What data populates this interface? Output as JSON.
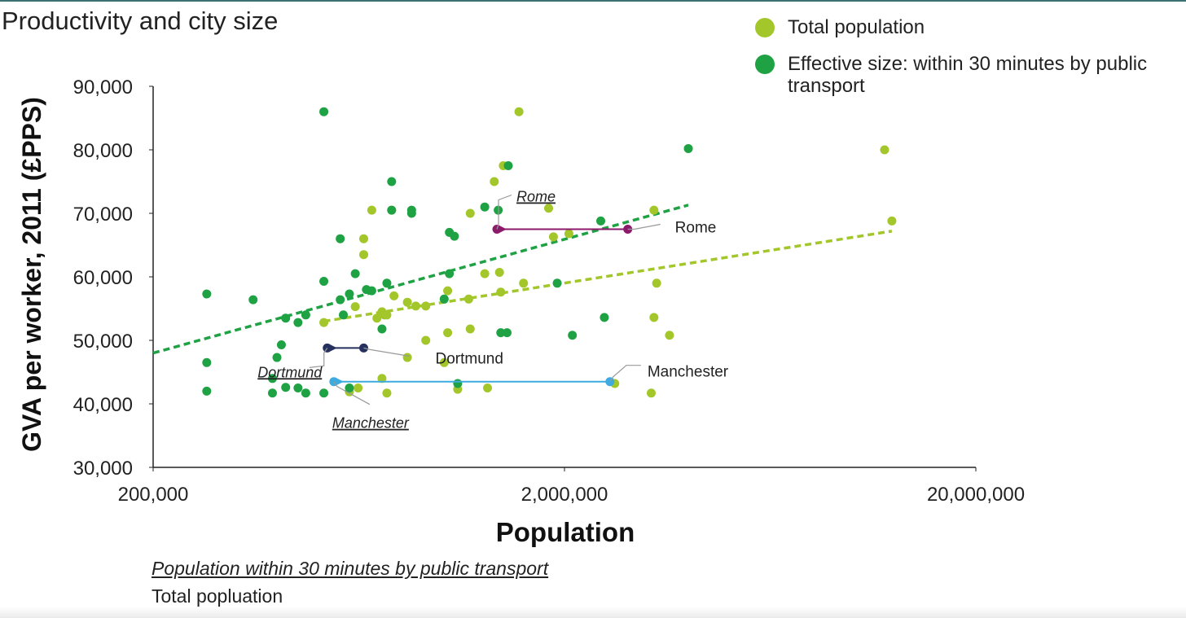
{
  "chart_data": {
    "type": "scatter",
    "title": "Productivity and city size",
    "xlabel": "Population",
    "ylabel": "GVA per worker, 2011 (£PPS)",
    "x_scale": "log",
    "xlim": [
      200000,
      20000000
    ],
    "ylim": [
      30000,
      90000
    ],
    "x_ticks": [
      200000,
      2000000,
      20000000
    ],
    "x_tick_labels": [
      "200,000",
      "2,000,000",
      "20,000,000"
    ],
    "y_ticks": [
      30000,
      40000,
      50000,
      60000,
      70000,
      80000,
      90000
    ],
    "y_tick_labels": [
      "30,000",
      "40,000",
      "50,000",
      "60,000",
      "70,000",
      "80,000",
      "90,000"
    ],
    "grid": false,
    "legend_position": "top-right",
    "series": [
      {
        "name": "Total population",
        "color": "#a3c72b",
        "points": [
          [
            1550000,
            86000
          ],
          [
            1420000,
            77500
          ],
          [
            1350000,
            75000
          ],
          [
            12000000,
            80000
          ],
          [
            12500000,
            68800
          ],
          [
            1830000,
            70800
          ],
          [
            1180000,
            70000
          ],
          [
            1880000,
            66300
          ],
          [
            2050000,
            66800
          ],
          [
            3300000,
            70500
          ],
          [
            3350000,
            59000
          ],
          [
            3300000,
            53600
          ],
          [
            3600000,
            50800
          ],
          [
            3250000,
            41700
          ],
          [
            2650000,
            43200
          ],
          [
            680000,
            70500
          ],
          [
            650000,
            66000
          ],
          [
            650000,
            63500
          ],
          [
            760000,
            70500
          ],
          [
            1280000,
            60500
          ],
          [
            1390000,
            60700
          ],
          [
            1400000,
            57600
          ],
          [
            1590000,
            59000
          ],
          [
            1040000,
            57800
          ],
          [
            1170000,
            56500
          ],
          [
            920000,
            55400
          ],
          [
            870000,
            55400
          ],
          [
            830000,
            56000
          ],
          [
            770000,
            57000
          ],
          [
            720000,
            54500
          ],
          [
            700000,
            53500
          ],
          [
            730000,
            54000
          ],
          [
            740000,
            54000
          ],
          [
            620000,
            55300
          ],
          [
            520000,
            52800
          ],
          [
            1040000,
            51200
          ],
          [
            1180000,
            51800
          ],
          [
            920000,
            50000
          ],
          [
            1020000,
            46500
          ],
          [
            830000,
            47300
          ],
          [
            720000,
            44000
          ],
          [
            600000,
            41900
          ],
          [
            740000,
            41700
          ],
          [
            1100000,
            42300
          ],
          [
            1300000,
            42500
          ],
          [
            630000,
            42500
          ]
        ]
      },
      {
        "name": "Effective size: within 30 minutes by public transport",
        "color": "#1fa244",
        "points": [
          [
            520000,
            86000
          ],
          [
            4000000,
            80200
          ],
          [
            1460000,
            77500
          ],
          [
            760000,
            75000
          ],
          [
            1280000,
            71000
          ],
          [
            1380000,
            70500
          ],
          [
            2450000,
            68800
          ],
          [
            760000,
            70500
          ],
          [
            850000,
            70500
          ],
          [
            850000,
            70000
          ],
          [
            1050000,
            67000
          ],
          [
            1080000,
            66400
          ],
          [
            1920000,
            59000
          ],
          [
            2090000,
            50800
          ],
          [
            2500000,
            53600
          ],
          [
            1400000,
            51200
          ],
          [
            570000,
            66000
          ],
          [
            620000,
            60500
          ],
          [
            520000,
            59300
          ],
          [
            1050000,
            60500
          ],
          [
            740000,
            59000
          ],
          [
            680000,
            57800
          ],
          [
            660000,
            58000
          ],
          [
            600000,
            57300
          ],
          [
            570000,
            56400
          ],
          [
            1020000,
            56500
          ],
          [
            580000,
            54000
          ],
          [
            470000,
            54000
          ],
          [
            420000,
            53500
          ],
          [
            450000,
            52800
          ],
          [
            720000,
            51800
          ],
          [
            270000,
            57300
          ],
          [
            350000,
            56400
          ],
          [
            410000,
            49300
          ],
          [
            400000,
            47300
          ],
          [
            270000,
            46500
          ],
          [
            390000,
            44000
          ],
          [
            270000,
            42000
          ],
          [
            390000,
            41700
          ],
          [
            420000,
            42600
          ],
          [
            450000,
            42500
          ],
          [
            470000,
            41700
          ],
          [
            520000,
            41700
          ],
          [
            600000,
            42500
          ],
          [
            1100000,
            43200
          ],
          [
            1450000,
            51200
          ]
        ]
      }
    ],
    "trendlines": [
      {
        "series": "Total population",
        "x": [
          520000,
          12500000
        ],
        "y": [
          53000,
          67200
        ]
      },
      {
        "series": "Effective size: within 30 minutes by public transport",
        "x": [
          200000,
          4000000
        ],
        "y": [
          48000,
          71300
        ]
      }
    ],
    "highlights": [
      {
        "city": "Rome",
        "color": "#8c1a6a",
        "total_population": 2850000,
        "effective_size": 1370000,
        "gva": 67500,
        "label_total": "Rome",
        "label_effective": "Rome"
      },
      {
        "city": "Dortmund",
        "color": "#26305e",
        "total_population": 650000,
        "effective_size": 530000,
        "gva": 48800,
        "label_total": "Dortmund",
        "label_effective": "Dortmund"
      },
      {
        "city": "Manchester",
        "color": "#3daae0",
        "total_population": 2580000,
        "effective_size": 550000,
        "gva": 43500,
        "label_total": "Manchester",
        "label_effective": "Manchester"
      }
    ]
  },
  "footnotes": {
    "effective_label": "Population within 30 minutes by public transport",
    "total_label": "Total popluation"
  }
}
